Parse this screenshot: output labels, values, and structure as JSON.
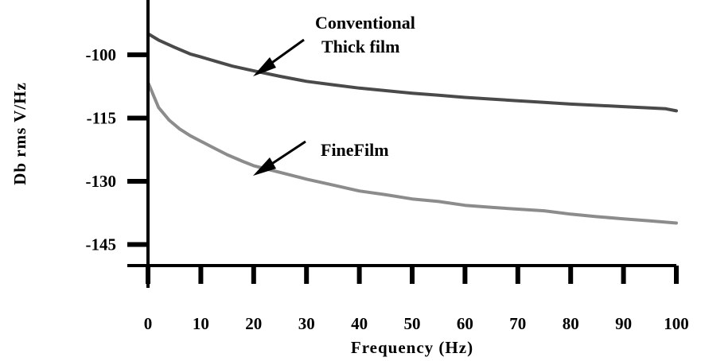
{
  "chart_data": {
    "type": "line",
    "title": "",
    "xlabel": "Frequency (Hz)",
    "ylabel": "Db rms V/Hz",
    "xlim": [
      0,
      100
    ],
    "ylim": [
      -150,
      -87
    ],
    "x_ticks": [
      0,
      10,
      20,
      30,
      40,
      50,
      60,
      70,
      80,
      90,
      100
    ],
    "y_ticks": [
      -100,
      -115,
      -130,
      -145
    ],
    "grid": false,
    "legend": "none",
    "series": [
      {
        "key": "conventional",
        "color": "#4a4a4a",
        "x": [
          0,
          2,
          5,
          8,
          10,
          13,
          16,
          20,
          25,
          30,
          35,
          40,
          45,
          50,
          55,
          60,
          65,
          70,
          75,
          80,
          85,
          90,
          95,
          98,
          100
        ],
        "y": [
          -95,
          -96.5,
          -98.2,
          -99.8,
          -100.5,
          -101.6,
          -102.7,
          -103.8,
          -105.1,
          -106.3,
          -107.1,
          -107.9,
          -108.5,
          -109.1,
          -109.6,
          -110.1,
          -110.5,
          -110.9,
          -111.3,
          -111.7,
          -112.0,
          -112.3,
          -112.6,
          -112.8,
          -113.3
        ]
      },
      {
        "key": "finefilm",
        "color": "#8c8c8c",
        "x": [
          0,
          1,
          2,
          4,
          6,
          8,
          10,
          12,
          15,
          18,
          20,
          25,
          30,
          35,
          40,
          45,
          50,
          55,
          60,
          65,
          70,
          75,
          80,
          85,
          90,
          95,
          100
        ],
        "y": [
          -106.5,
          -109.5,
          -112.5,
          -115.5,
          -117.6,
          -119.2,
          -120.5,
          -121.8,
          -123.7,
          -125.3,
          -126.3,
          -127.9,
          -129.5,
          -130.9,
          -132.3,
          -133.2,
          -134.2,
          -134.8,
          -135.7,
          -136.2,
          -136.6,
          -137.0,
          -137.8,
          -138.4,
          -138.9,
          -139.4,
          -139.9
        ]
      }
    ],
    "annotations": [
      {
        "key": "conventional",
        "lines": [
          "Conventional",
          "Thick film"
        ]
      },
      {
        "key": "finefilm",
        "lines": [
          "FineFilm"
        ]
      }
    ]
  }
}
